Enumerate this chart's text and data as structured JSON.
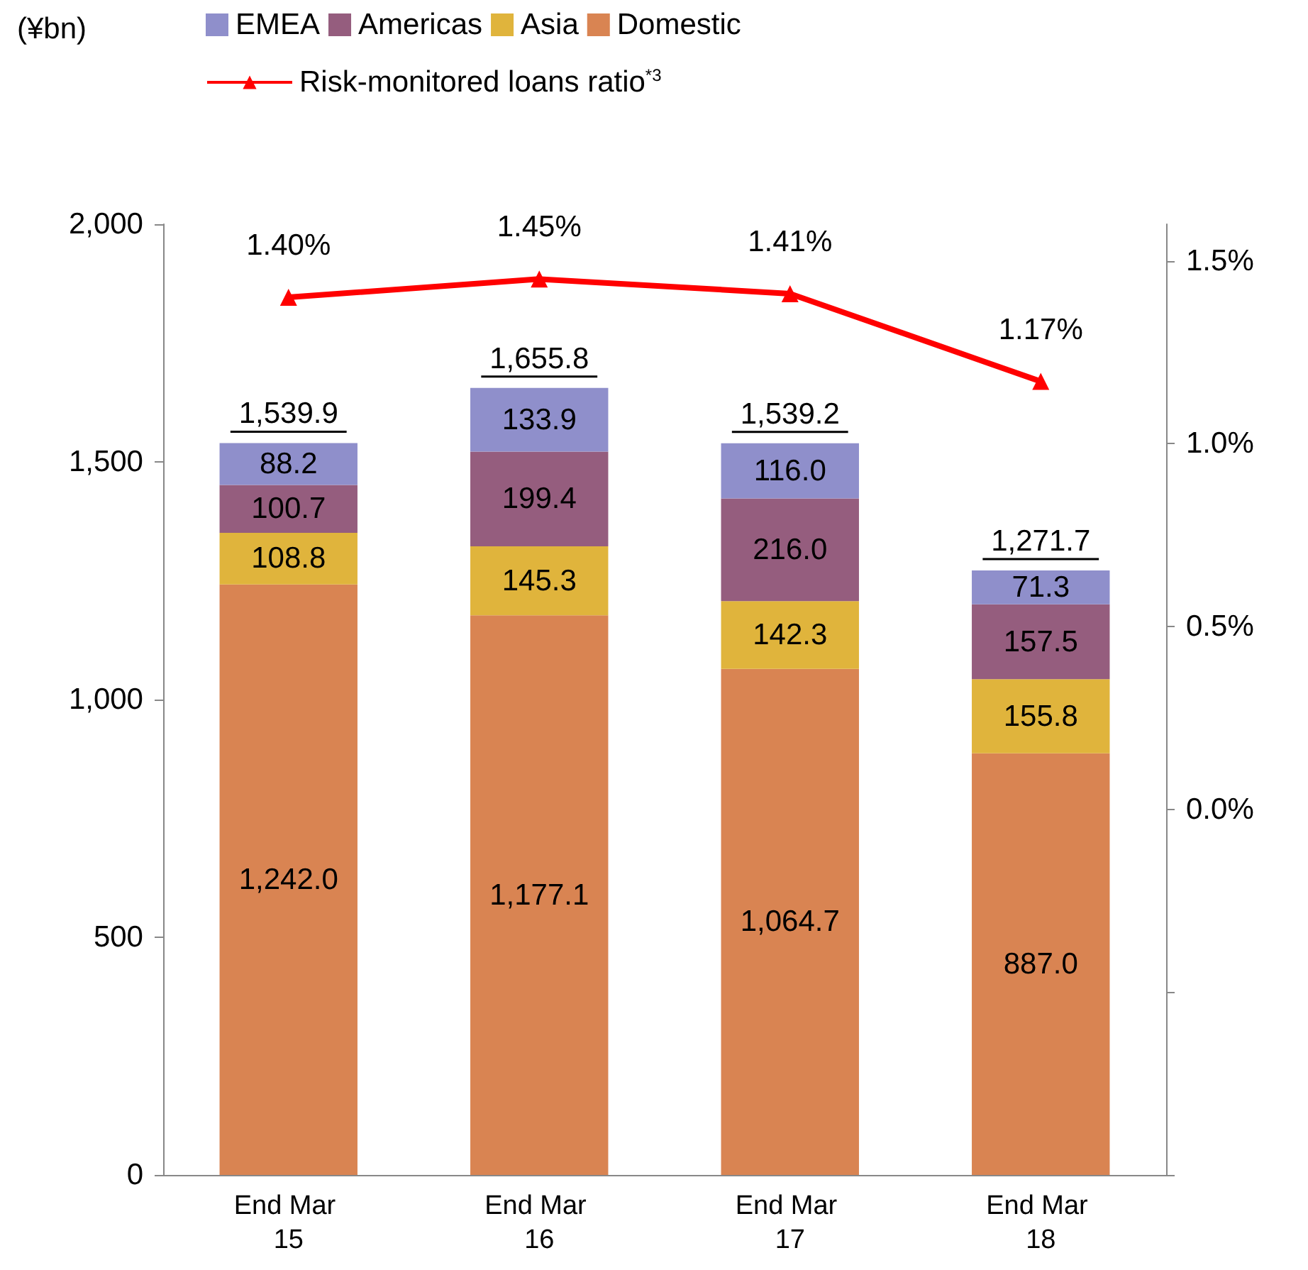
{
  "chart_data": {
    "type": "bar",
    "stacked": true,
    "annotations": [
      "(¥bn)"
    ],
    "categories": [
      "End Mar 15",
      "End Mar 16",
      "End Mar 17",
      "End Mar 18"
    ],
    "series": [
      {
        "name": "Domestic",
        "color": "#d98452",
        "values": [
          1242.0,
          1177.1,
          1064.7,
          887.0
        ],
        "value_labels": [
          "1,242.0",
          "1,177.1",
          "1,064.7",
          "887.0"
        ]
      },
      {
        "name": "Asia",
        "color": "#e0b43c",
        "values": [
          108.8,
          145.3,
          142.3,
          155.8
        ],
        "value_labels": [
          "108.8",
          "145.3",
          "142.3",
          "155.8"
        ]
      },
      {
        "name": "Americas",
        "color": "#955d7e",
        "values": [
          100.7,
          199.4,
          216.0,
          157.5
        ],
        "value_labels": [
          "100.7",
          "199.4",
          "216.0",
          "157.5"
        ]
      },
      {
        "name": "EMEA",
        "color": "#8f8fcb",
        "values": [
          88.2,
          133.9,
          116.0,
          71.3
        ],
        "value_labels": [
          "88.2",
          "133.9",
          "116.0",
          "71.3"
        ]
      },
      {
        "name": "Risk-monitored loans ratio$^{*3}$",
        "type": "line",
        "axis": "y2",
        "color": "#ff0000",
        "marker": "triangle",
        "values": [
          1.4,
          1.45,
          1.41,
          1.17
        ],
        "value_labels": [
          "1.40%",
          "1.45%",
          "1.41%",
          "1.17%"
        ]
      }
    ],
    "totals": [
      "1,539.9",
      "1,655.8",
      "1,539.2",
      "1,271.7"
    ],
    "ylim": [
      0,
      2000
    ],
    "yticks": [
      {
        "value": 0,
        "label": "0"
      },
      {
        "value": 500,
        "label": "500"
      },
      {
        "value": 1000,
        "label": "1,000"
      },
      {
        "value": 1500,
        "label": "1,500"
      },
      {
        "value": 2000,
        "label": "2,000"
      }
    ],
    "y2lim": [
      -1.0,
      1.6
    ],
    "y2ticks": [
      {
        "value": -1.0,
        "label": null
      },
      {
        "value": -0.5,
        "label": null
      },
      {
        "value": 0.0,
        "label": "0.0%"
      },
      {
        "value": 0.5,
        "label": "0.5%"
      },
      {
        "value": 1.0,
        "label": "1.0%"
      },
      {
        "value": 1.5,
        "label": "1.5%"
      }
    ],
    "grid": false,
    "legend": "top"
  }
}
